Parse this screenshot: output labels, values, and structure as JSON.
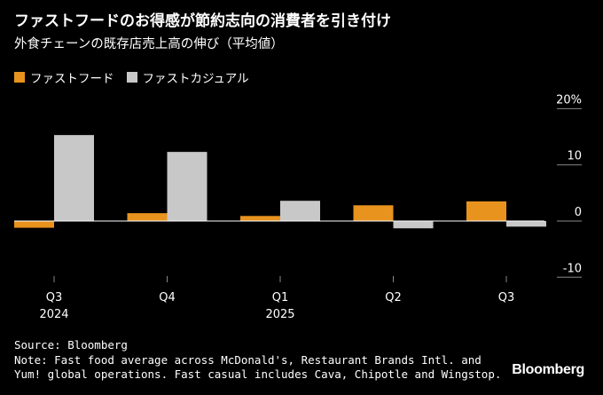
{
  "title": "ファストフードのお得感が節約志向の消費者を引き付け",
  "subtitle": "外食チェーンの既存店売上高の伸び（平均値）",
  "legend": {
    "items": [
      {
        "label": "ファストフード",
        "color": "#e8931e"
      },
      {
        "label": "ファストカジュアル",
        "color": "#c8c8c8"
      }
    ]
  },
  "footer": {
    "source": "Source: Bloomberg",
    "note_line1": "Note: Fast food average across McDonald's, Restaurant Brands Intl. and",
    "note_line2": "Yum! global operations. Fast casual includes Cava, Chipotle and Wingstop."
  },
  "brand": "Bloomberg",
  "chart_data": {
    "type": "bar",
    "categories": [
      "Q3",
      "Q4",
      "Q1",
      "Q2",
      "Q3"
    ],
    "category_years": [
      "2024",
      "",
      "2025",
      "",
      ""
    ],
    "series": [
      {
        "name": "ファストフード",
        "color": "#e8931e",
        "values": [
          -1.2,
          1.4,
          0.9,
          2.8,
          3.5
        ]
      },
      {
        "name": "ファストカジュアル",
        "color": "#c8c8c8",
        "values": [
          15.3,
          12.3,
          3.6,
          -1.3,
          -1.0
        ]
      }
    ],
    "ylim": [
      -10,
      20
    ],
    "yticks": [
      20,
      10,
      0,
      -10
    ],
    "ytick_labels": [
      "20%",
      "10",
      "0",
      "-10"
    ],
    "xlabel": "",
    "ylabel": ""
  }
}
